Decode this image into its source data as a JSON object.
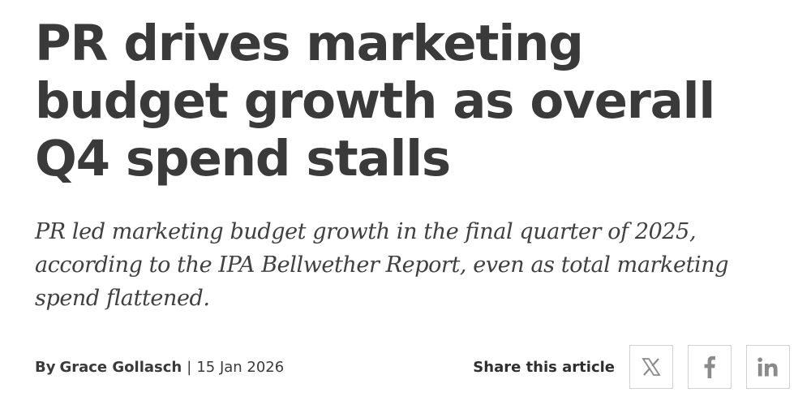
{
  "article": {
    "headline": "PR drives marketing budget growth as overall Q4 spend stalls",
    "standfirst": "PR led marketing budget growth in the final quarter of 2025, according to the IPA Bellwether Report, even as total marketing spend flattened.",
    "byline_prefix": "By",
    "author": "Grace Gollasch",
    "separator": "|",
    "date": "15 Jan 2026"
  },
  "share": {
    "label": "Share this article",
    "buttons": [
      {
        "icon": "x-logo-icon"
      },
      {
        "icon": "facebook-icon"
      },
      {
        "icon": "linkedin-icon"
      }
    ]
  },
  "colors": {
    "text": "#3a3a3a",
    "icon": "#8a8a8a",
    "border": "#d2d2d2"
  }
}
